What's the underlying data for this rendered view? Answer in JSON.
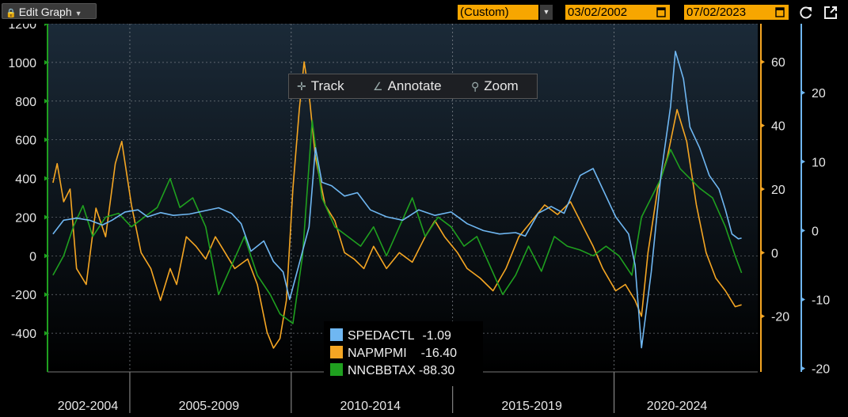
{
  "toolbar": {
    "edit_label": "Edit Graph",
    "range_label": "(Custom)",
    "start_date": "03/02/2002",
    "end_date": "07/02/2023",
    "refresh_icon": "refresh-icon",
    "expand_icon": "expand-icon"
  },
  "chart_tools": {
    "track_label": "Track",
    "annotate_label": "Annotate",
    "zoom_label": "Zoom"
  },
  "colors": {
    "spedactl": "#6fb7f2",
    "napmpmi": "#f5a623",
    "nncbbtax": "#1fa01f",
    "background_top": "#1b2a38",
    "background_bottom": "#000000"
  },
  "chart_data": {
    "type": "line",
    "x_groups": [
      "2002-2004",
      "2005-2009",
      "2010-2014",
      "2015-2019",
      "2020-2024"
    ],
    "axes": {
      "left": {
        "color": "#1fa01f",
        "ylim": [
          -600,
          1200
        ],
        "ticks": [
          1200,
          1000,
          800,
          600,
          400,
          200,
          0,
          -200,
          -400
        ]
      },
      "right_orange": {
        "color": "#f5a623",
        "ylim": [
          -37.5,
          72
        ],
        "ticks": [
          60,
          40,
          20,
          0,
          -20
        ]
      },
      "right_blue": {
        "color": "#6fb7f2",
        "ylim": [
          -20.5,
          30
        ],
        "ticks": [
          20,
          10,
          0,
          -10,
          -20
        ]
      }
    },
    "grid": true,
    "legend_position": "bottom-center",
    "series": [
      {
        "name": "SPEDACTL",
        "last_value": "-1.09",
        "axis": "right_blue",
        "points": [
          [
            2002.17,
            -0.5
          ],
          [
            2002.5,
            1.5
          ],
          [
            2002.9,
            1.8
          ],
          [
            2003.3,
            1.5
          ],
          [
            2003.7,
            0.8
          ],
          [
            2004.0,
            1.5
          ],
          [
            2004.4,
            2.7
          ],
          [
            2004.8,
            3.0
          ],
          [
            2005.1,
            2.0
          ],
          [
            2005.5,
            2.6
          ],
          [
            2005.9,
            2.2
          ],
          [
            2006.4,
            2.4
          ],
          [
            2006.8,
            2.8
          ],
          [
            2007.3,
            3.3
          ],
          [
            2007.7,
            2.5
          ],
          [
            2008.0,
            1.0
          ],
          [
            2008.3,
            -3.0
          ],
          [
            2008.7,
            -1.5
          ],
          [
            2009.0,
            -4.5
          ],
          [
            2009.3,
            -6.0
          ],
          [
            2009.5,
            -10.0
          ],
          [
            2009.7,
            -6.5
          ],
          [
            2009.9,
            -3.0
          ],
          [
            2010.1,
            0.5
          ],
          [
            2010.3,
            12.0
          ],
          [
            2010.5,
            7.0
          ],
          [
            2010.8,
            6.5
          ],
          [
            2011.2,
            5.0
          ],
          [
            2011.6,
            5.5
          ],
          [
            2012.0,
            3.0
          ],
          [
            2012.5,
            2.0
          ],
          [
            2013.0,
            1.5
          ],
          [
            2013.5,
            3.0
          ],
          [
            2014.0,
            2.2
          ],
          [
            2014.5,
            2.7
          ],
          [
            2015.0,
            1.0
          ],
          [
            2015.5,
            0.0
          ],
          [
            2016.0,
            -0.5
          ],
          [
            2016.5,
            -0.3
          ],
          [
            2016.8,
            -0.8
          ],
          [
            2017.2,
            2.5
          ],
          [
            2017.6,
            3.5
          ],
          [
            2018.0,
            2.5
          ],
          [
            2018.5,
            8.0
          ],
          [
            2018.9,
            9.0
          ],
          [
            2019.2,
            6.0
          ],
          [
            2019.6,
            2.0
          ],
          [
            2020.0,
            -0.5
          ],
          [
            2020.2,
            -5.0
          ],
          [
            2020.4,
            -17.0
          ],
          [
            2020.7,
            -6.0
          ],
          [
            2021.0,
            8.0
          ],
          [
            2021.3,
            18.0
          ],
          [
            2021.45,
            26.0
          ],
          [
            2021.7,
            22.0
          ],
          [
            2021.9,
            15.0
          ],
          [
            2022.2,
            12.0
          ],
          [
            2022.5,
            8.0
          ],
          [
            2022.8,
            6.0
          ],
          [
            2023.0,
            3.0
          ],
          [
            2023.2,
            -0.5
          ],
          [
            2023.4,
            -1.2
          ],
          [
            2023.5,
            -1.09
          ]
        ]
      },
      {
        "name": "NAPMPMI",
        "last_value": "-16.40",
        "axis": "right_orange",
        "points": [
          [
            2002.17,
            22
          ],
          [
            2002.3,
            28
          ],
          [
            2002.5,
            16
          ],
          [
            2002.7,
            20
          ],
          [
            2002.9,
            -5
          ],
          [
            2003.2,
            -10
          ],
          [
            2003.5,
            14
          ],
          [
            2003.8,
            5
          ],
          [
            2004.1,
            28
          ],
          [
            2004.3,
            35
          ],
          [
            2004.6,
            15
          ],
          [
            2004.9,
            0
          ],
          [
            2005.2,
            -5
          ],
          [
            2005.5,
            -15
          ],
          [
            2005.8,
            -5
          ],
          [
            2006.0,
            -10
          ],
          [
            2006.3,
            5
          ],
          [
            2006.6,
            2
          ],
          [
            2006.9,
            -2
          ],
          [
            2007.2,
            5
          ],
          [
            2007.5,
            0
          ],
          [
            2007.8,
            -5
          ],
          [
            2008.2,
            -2
          ],
          [
            2008.5,
            -10
          ],
          [
            2008.8,
            -25
          ],
          [
            2009.0,
            -30
          ],
          [
            2009.2,
            -27
          ],
          [
            2009.4,
            -15
          ],
          [
            2009.6,
            20
          ],
          [
            2009.8,
            45
          ],
          [
            2009.95,
            60
          ],
          [
            2010.1,
            50
          ],
          [
            2010.3,
            30
          ],
          [
            2010.6,
            15
          ],
          [
            2010.9,
            10
          ],
          [
            2011.2,
            0
          ],
          [
            2011.5,
            -2
          ],
          [
            2011.8,
            -5
          ],
          [
            2012.1,
            2
          ],
          [
            2012.5,
            -5
          ],
          [
            2012.9,
            0
          ],
          [
            2013.3,
            -3
          ],
          [
            2013.7,
            5
          ],
          [
            2014.0,
            10
          ],
          [
            2014.3,
            5
          ],
          [
            2014.7,
            0
          ],
          [
            2015.0,
            -5
          ],
          [
            2015.4,
            -8
          ],
          [
            2015.8,
            -12
          ],
          [
            2016.2,
            -5
          ],
          [
            2016.6,
            5
          ],
          [
            2017.0,
            10
          ],
          [
            2017.4,
            15
          ],
          [
            2017.8,
            12
          ],
          [
            2018.2,
            16
          ],
          [
            2018.6,
            8
          ],
          [
            2018.9,
            2
          ],
          [
            2019.2,
            -5
          ],
          [
            2019.6,
            -12
          ],
          [
            2019.9,
            -10
          ],
          [
            2020.2,
            -15
          ],
          [
            2020.4,
            -20
          ],
          [
            2020.6,
            0
          ],
          [
            2020.9,
            20
          ],
          [
            2021.2,
            30
          ],
          [
            2021.5,
            45
          ],
          [
            2021.8,
            35
          ],
          [
            2022.1,
            15
          ],
          [
            2022.4,
            0
          ],
          [
            2022.7,
            -8
          ],
          [
            2023.0,
            -12
          ],
          [
            2023.3,
            -17
          ],
          [
            2023.5,
            -16.4
          ]
        ]
      },
      {
        "name": "NNCBBTAX",
        "last_value": "-88.30",
        "axis": "left",
        "points": [
          [
            2002.17,
            -100
          ],
          [
            2002.5,
            0
          ],
          [
            2002.8,
            150
          ],
          [
            2003.1,
            260
          ],
          [
            2003.4,
            100
          ],
          [
            2003.8,
            200
          ],
          [
            2004.2,
            220
          ],
          [
            2004.6,
            150
          ],
          [
            2005.0,
            200
          ],
          [
            2005.4,
            250
          ],
          [
            2005.8,
            400
          ],
          [
            2006.1,
            250
          ],
          [
            2006.5,
            300
          ],
          [
            2006.9,
            150
          ],
          [
            2007.3,
            -200
          ],
          [
            2007.7,
            -50
          ],
          [
            2008.1,
            100
          ],
          [
            2008.5,
            -100
          ],
          [
            2008.9,
            -200
          ],
          [
            2009.2,
            -300
          ],
          [
            2009.6,
            -350
          ],
          [
            2009.9,
            0
          ],
          [
            2010.2,
            700
          ],
          [
            2010.5,
            300
          ],
          [
            2010.9,
            150
          ],
          [
            2011.3,
            100
          ],
          [
            2011.7,
            50
          ],
          [
            2012.1,
            150
          ],
          [
            2012.5,
            0
          ],
          [
            2012.9,
            150
          ],
          [
            2013.3,
            300
          ],
          [
            2013.7,
            100
          ],
          [
            2014.1,
            200
          ],
          [
            2014.5,
            150
          ],
          [
            2014.9,
            50
          ],
          [
            2015.3,
            100
          ],
          [
            2015.7,
            -50
          ],
          [
            2016.1,
            -200
          ],
          [
            2016.5,
            -100
          ],
          [
            2016.9,
            50
          ],
          [
            2017.3,
            -80
          ],
          [
            2017.7,
            100
          ],
          [
            2018.1,
            50
          ],
          [
            2018.5,
            30
          ],
          [
            2018.9,
            0
          ],
          [
            2019.3,
            50
          ],
          [
            2019.7,
            0
          ],
          [
            2020.1,
            -100
          ],
          [
            2020.4,
            200
          ],
          [
            2020.7,
            300
          ],
          [
            2021.0,
            400
          ],
          [
            2021.3,
            550
          ],
          [
            2021.6,
            450
          ],
          [
            2021.9,
            400
          ],
          [
            2022.2,
            350
          ],
          [
            2022.6,
            300
          ],
          [
            2023.0,
            150
          ],
          [
            2023.3,
            0
          ],
          [
            2023.5,
            -88.3
          ]
        ]
      }
    ]
  }
}
